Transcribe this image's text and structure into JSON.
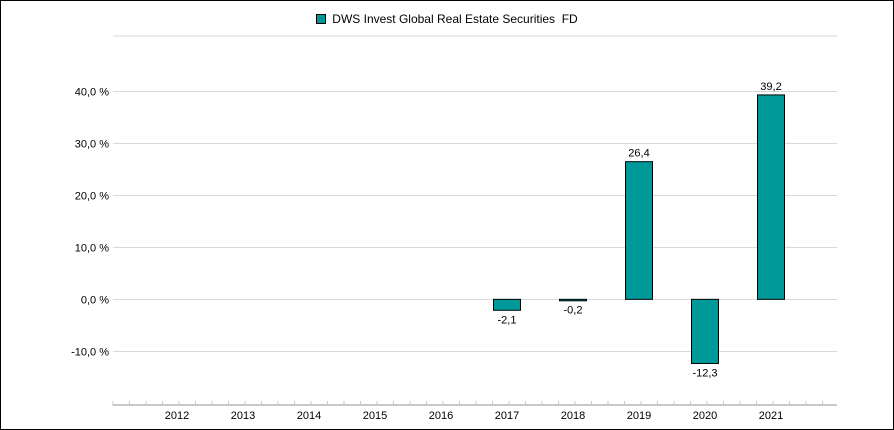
{
  "chart_data": {
    "type": "bar",
    "categories": [
      "2012",
      "2013",
      "2014",
      "2015",
      "2016",
      "2017",
      "2018",
      "2019",
      "2020",
      "2021"
    ],
    "series": [
      {
        "name": "DWS Invest Global Real Estate Securities  FD",
        "values": [
          null,
          null,
          null,
          null,
          null,
          -2.1,
          -0.2,
          26.4,
          -12.3,
          39.2
        ],
        "labels": [
          "",
          "",
          "",
          "",
          "",
          "-2,1",
          "-0,2",
          "26,4",
          "-12,3",
          "39,2"
        ]
      }
    ],
    "yticks": [
      -10,
      0,
      10,
      20,
      30,
      40
    ],
    "ytick_labels": [
      "-10,0 %",
      "0,0 %",
      "10,0 %",
      "20,0 %",
      "30,0 %",
      "40,0 %"
    ],
    "ylim": [
      -19.5,
      50.5
    ],
    "grid": true,
    "legend_position": "top-center",
    "colors": {
      "bar": "#009999",
      "bar_border": "#000000",
      "grid": "#d9d9d9",
      "axis": "#c8c8c8"
    }
  }
}
